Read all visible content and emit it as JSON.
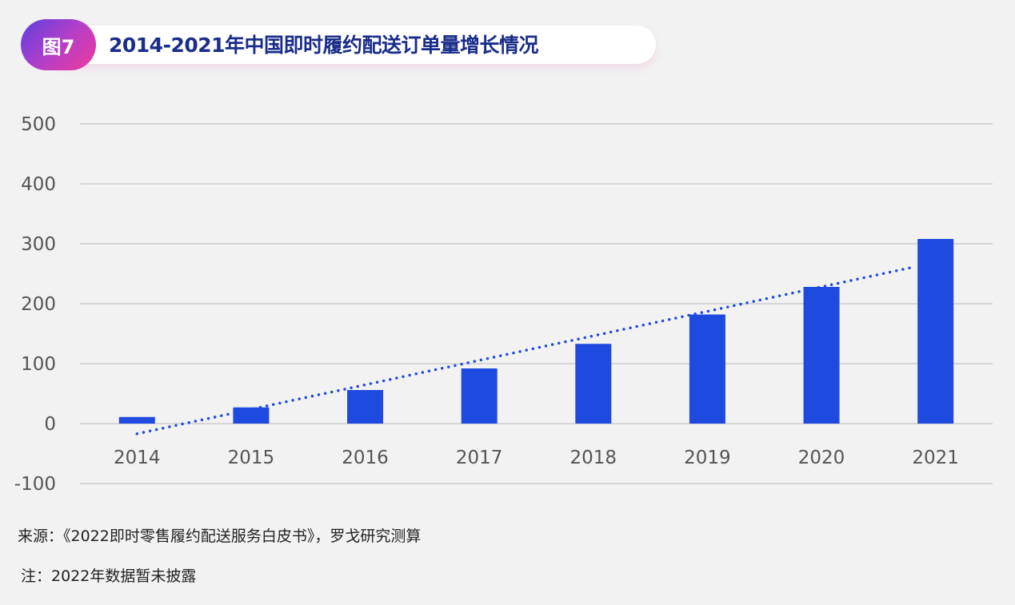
{
  "header": {
    "badge": "图7",
    "title": "2014-2021年中国即时履约配送订单量增长情况"
  },
  "chart_data": {
    "type": "bar",
    "title": "2014-2021年中国即时履约配送订单量增长情况",
    "xlabel": "",
    "ylabel": "",
    "categories": [
      "2014",
      "2015",
      "2016",
      "2017",
      "2018",
      "2019",
      "2020",
      "2021"
    ],
    "series": [
      {
        "name": "即时履约配送订单量",
        "values": [
          11,
          27,
          56,
          92,
          133,
          182,
          228,
          308
        ],
        "color": "#1f4ae0"
      }
    ],
    "trendline": {
      "type": "linear",
      "style": "dotted",
      "color": "#1f4ae0",
      "start": -17,
      "end": 269
    },
    "ylim": [
      -100,
      500
    ],
    "yticks": [
      -100,
      0,
      100,
      200,
      300,
      400,
      500
    ],
    "ytick_labels": [
      "-100",
      "0",
      "100",
      "200",
      "300",
      "400",
      "500"
    ],
    "grid": true,
    "legend": "none"
  },
  "footer": {
    "source": "来源：《2022即时零售履约配送服务白皮书》，罗戈研究测算",
    "note": "注：2022年数据暂未披露"
  }
}
